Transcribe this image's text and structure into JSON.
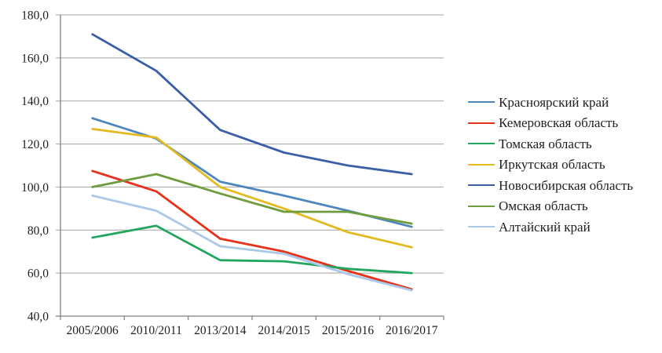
{
  "chart_data": {
    "type": "line",
    "title": "",
    "xlabel": "",
    "ylabel": "",
    "categories": [
      "2005/2006",
      "2010/2011",
      "2013/2014",
      "2014/2015",
      "2015/2016",
      "2016/2017"
    ],
    "series": [
      {
        "name": "Красноярский край",
        "color": "#4d87be",
        "values": [
          132,
          122.5,
          102.5,
          96,
          89,
          81.5
        ]
      },
      {
        "name": "Кемеровская область",
        "color": "#e8311a",
        "values": [
          107.5,
          98,
          76,
          70,
          61,
          52.5
        ]
      },
      {
        "name": "Томская область",
        "color": "#21a65f",
        "values": [
          76.5,
          82,
          66,
          65.5,
          62,
          60
        ]
      },
      {
        "name": "Иркутская область",
        "color": "#e3ba20",
        "values": [
          127,
          123,
          100,
          90,
          79,
          72
        ]
      },
      {
        "name": "Новосибирская область",
        "color": "#3a5fa7",
        "values": [
          171,
          154,
          126.5,
          116,
          110,
          106
        ]
      },
      {
        "name": "Омская область",
        "color": "#6f9c3d",
        "values": [
          100,
          106,
          97,
          88.5,
          88.5,
          83
        ]
      },
      {
        "name": "Алтайский край",
        "color": "#abc8e8",
        "values": [
          96,
          89,
          72.5,
          69,
          59.5,
          52
        ]
      }
    ],
    "ylim": [
      40,
      180
    ],
    "yticks": [
      {
        "value": 40,
        "label": "40,0"
      },
      {
        "value": 60,
        "label": "60,0"
      },
      {
        "value": 80,
        "label": "80,0"
      },
      {
        "value": 100,
        "label": "100,0"
      },
      {
        "value": 120,
        "label": "120,0"
      },
      {
        "value": 140,
        "label": "140,0"
      },
      {
        "value": 160,
        "label": "160,0"
      },
      {
        "value": 180,
        "label": "180,0"
      }
    ],
    "grid": true,
    "legend_position": "right",
    "axis_color": "#7f7f7f",
    "grid_color": "#a3a3a3",
    "text_color": "#1f1f1f"
  }
}
